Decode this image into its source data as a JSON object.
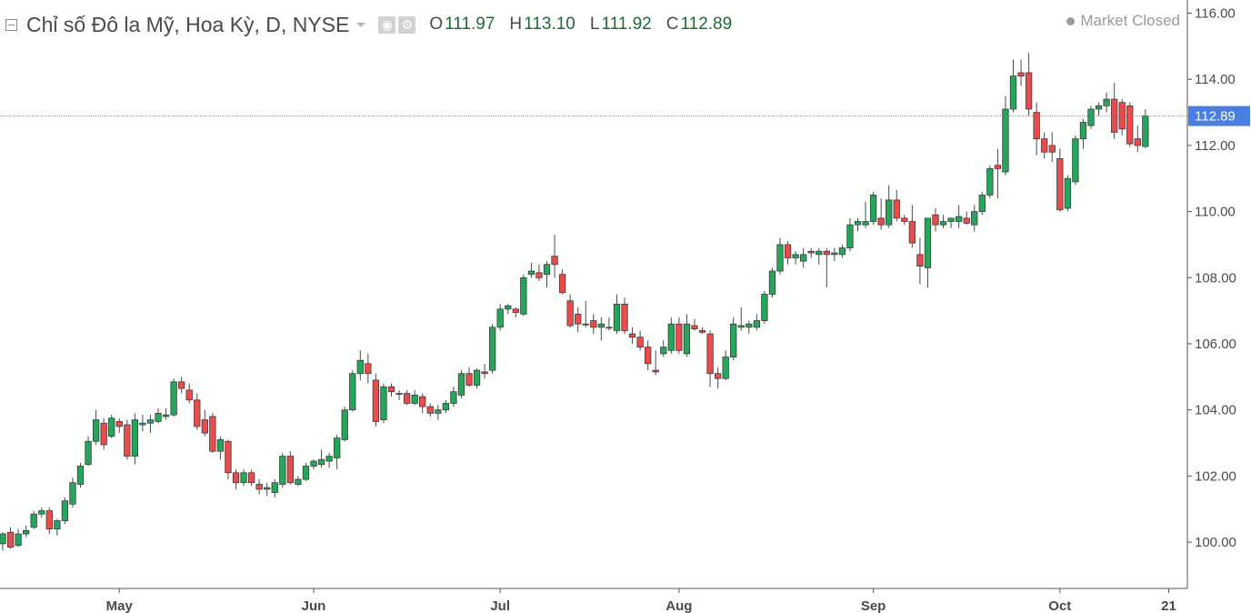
{
  "header": {
    "title": "Chỉ số Đô la Mỹ, Hoa Kỳ, D, NYSE",
    "ohlc": [
      {
        "key": "O",
        "value": "111.97"
      },
      {
        "key": "H",
        "value": "113.10"
      },
      {
        "key": "L",
        "value": "111.92"
      },
      {
        "key": "C",
        "value": "112.89"
      }
    ],
    "market_status": "Market Closed"
  },
  "colors": {
    "up": "#26a65b",
    "down": "#ec4b4b",
    "last_price_label_bg": "#4a7ee0",
    "price_line": "#4a7ee0",
    "axis_text": "#4a4a4a"
  },
  "chart_data": {
    "type": "candlestick",
    "title": "Chỉ số Đô la Mỹ, Hoa Kỳ, D, NYSE",
    "ylim": [
      98.6,
      116.4
    ],
    "y_ticks": [
      "116.00",
      "114.00",
      "112.00",
      "110.00",
      "108.00",
      "106.00",
      "104.00",
      "102.00",
      "100.00"
    ],
    "x_ticks": [
      {
        "label": "May",
        "index": 15
      },
      {
        "label": "Jun",
        "index": 40
      },
      {
        "label": "Jul",
        "index": 64
      },
      {
        "label": "Aug",
        "index": 87
      },
      {
        "label": "Sep",
        "index": 112
      },
      {
        "label": "Oct",
        "index": 136
      },
      {
        "label": "21",
        "index": 150
      }
    ],
    "last_price": "112.89",
    "grid": false,
    "candles": [
      [
        99.95,
        100.3,
        99.75,
        100.25
      ],
      [
        100.3,
        100.45,
        99.8,
        99.85
      ],
      [
        99.9,
        100.4,
        99.85,
        100.25
      ],
      [
        100.25,
        100.5,
        100.15,
        100.35
      ],
      [
        100.45,
        100.95,
        100.4,
        100.85
      ],
      [
        100.85,
        101.05,
        100.75,
        100.95
      ],
      [
        100.95,
        101.05,
        100.25,
        100.4
      ],
      [
        100.4,
        100.7,
        100.2,
        100.65
      ],
      [
        100.65,
        101.35,
        100.55,
        101.25
      ],
      [
        101.15,
        101.95,
        101.05,
        101.8
      ],
      [
        101.75,
        102.4,
        101.65,
        102.3
      ],
      [
        102.35,
        103.2,
        102.3,
        103.05
      ],
      [
        103.05,
        104.0,
        102.95,
        103.7
      ],
      [
        103.6,
        103.75,
        102.8,
        102.95
      ],
      [
        103.2,
        103.85,
        103.15,
        103.75
      ],
      [
        103.65,
        103.75,
        103.3,
        103.5
      ],
      [
        103.55,
        103.7,
        102.5,
        102.6
      ],
      [
        102.6,
        103.9,
        102.35,
        103.7
      ],
      [
        103.55,
        103.85,
        103.35,
        103.6
      ],
      [
        103.6,
        103.85,
        103.3,
        103.7
      ],
      [
        103.65,
        104.05,
        103.6,
        103.9
      ],
      [
        103.8,
        104.05,
        103.7,
        103.85
      ],
      [
        103.85,
        104.95,
        103.8,
        104.85
      ],
      [
        104.85,
        105.0,
        104.5,
        104.65
      ],
      [
        104.6,
        104.8,
        104.2,
        104.3
      ],
      [
        104.3,
        104.5,
        103.4,
        103.5
      ],
      [
        103.7,
        104.0,
        103.2,
        103.3
      ],
      [
        103.8,
        103.9,
        102.7,
        102.75
      ],
      [
        102.75,
        103.2,
        102.5,
        103.1
      ],
      [
        103.05,
        103.1,
        101.9,
        102.1
      ],
      [
        102.1,
        102.2,
        101.6,
        101.8
      ],
      [
        101.8,
        102.2,
        101.7,
        102.1
      ],
      [
        102.1,
        102.2,
        101.7,
        101.8
      ],
      [
        101.75,
        101.9,
        101.45,
        101.6
      ],
      [
        101.6,
        101.8,
        101.4,
        101.65
      ],
      [
        101.5,
        101.9,
        101.35,
        101.8
      ],
      [
        101.75,
        102.7,
        101.65,
        102.6
      ],
      [
        102.6,
        102.75,
        101.75,
        101.8
      ],
      [
        101.75,
        102.0,
        101.7,
        101.9
      ],
      [
        101.9,
        102.4,
        101.85,
        102.3
      ],
      [
        102.3,
        102.5,
        102.2,
        102.45
      ],
      [
        102.35,
        102.8,
        102.25,
        102.5
      ],
      [
        102.45,
        102.7,
        102.25,
        102.6
      ],
      [
        102.55,
        103.25,
        102.2,
        103.15
      ],
      [
        103.1,
        104.1,
        103.05,
        104.0
      ],
      [
        104.0,
        105.2,
        103.95,
        105.1
      ],
      [
        105.1,
        105.8,
        104.9,
        105.5
      ],
      [
        105.4,
        105.7,
        104.8,
        105.1
      ],
      [
        104.9,
        105.1,
        103.5,
        103.65
      ],
      [
        103.7,
        104.8,
        103.6,
        104.7
      ],
      [
        104.7,
        104.8,
        104.4,
        104.55
      ],
      [
        104.5,
        104.6,
        104.3,
        104.5
      ],
      [
        104.5,
        104.6,
        104.15,
        104.2
      ],
      [
        104.2,
        104.6,
        104.15,
        104.45
      ],
      [
        104.4,
        104.5,
        103.9,
        104.1
      ],
      [
        104.1,
        104.2,
        103.8,
        103.9
      ],
      [
        103.9,
        104.15,
        103.7,
        104.0
      ],
      [
        104.0,
        104.3,
        103.9,
        104.2
      ],
      [
        104.2,
        104.7,
        104.1,
        104.55
      ],
      [
        104.45,
        105.2,
        104.35,
        105.1
      ],
      [
        105.1,
        105.3,
        104.7,
        104.75
      ],
      [
        104.75,
        105.25,
        104.65,
        105.2
      ],
      [
        105.15,
        105.4,
        104.95,
        105.1
      ],
      [
        105.2,
        106.6,
        105.1,
        106.5
      ],
      [
        106.5,
        107.2,
        106.4,
        107.05
      ],
      [
        107.05,
        107.2,
        106.9,
        107.15
      ],
      [
        107.05,
        107.1,
        106.8,
        106.95
      ],
      [
        106.9,
        108.1,
        106.85,
        108.0
      ],
      [
        108.1,
        108.45,
        108.0,
        108.2
      ],
      [
        108.15,
        108.4,
        107.9,
        108.0
      ],
      [
        108.1,
        108.5,
        107.7,
        108.4
      ],
      [
        108.65,
        109.3,
        108.0,
        108.4
      ],
      [
        108.1,
        108.25,
        107.5,
        107.55
      ],
      [
        107.3,
        107.5,
        106.5,
        106.55
      ],
      [
        106.9,
        107.1,
        106.35,
        106.6
      ],
      [
        106.6,
        107.3,
        106.5,
        106.6
      ],
      [
        106.7,
        106.9,
        106.3,
        106.5
      ],
      [
        106.5,
        106.8,
        106.1,
        106.6
      ],
      [
        106.5,
        106.8,
        106.4,
        106.5
      ],
      [
        106.4,
        107.5,
        106.3,
        107.2
      ],
      [
        107.2,
        107.4,
        106.3,
        106.4
      ],
      [
        106.3,
        106.5,
        106.0,
        106.2
      ],
      [
        106.2,
        106.4,
        105.8,
        105.9
      ],
      [
        105.9,
        106.1,
        105.2,
        105.4
      ],
      [
        105.2,
        105.8,
        105.05,
        105.15
      ],
      [
        105.7,
        106.1,
        105.6,
        105.9
      ],
      [
        105.8,
        106.8,
        105.7,
        106.6
      ],
      [
        106.6,
        106.8,
        105.7,
        105.8
      ],
      [
        105.7,
        106.9,
        105.6,
        106.6
      ],
      [
        106.55,
        106.75,
        106.4,
        106.45
      ],
      [
        106.4,
        106.5,
        106.3,
        106.35
      ],
      [
        106.3,
        106.4,
        104.7,
        105.1
      ],
      [
        105.1,
        105.3,
        104.65,
        104.95
      ],
      [
        104.95,
        105.8,
        104.9,
        105.6
      ],
      [
        105.6,
        106.8,
        105.5,
        106.6
      ],
      [
        106.5,
        107.1,
        106.4,
        106.55
      ],
      [
        106.5,
        106.7,
        106.3,
        106.6
      ],
      [
        106.5,
        106.9,
        106.4,
        106.7
      ],
      [
        106.7,
        107.6,
        106.6,
        107.5
      ],
      [
        107.5,
        108.3,
        107.4,
        108.2
      ],
      [
        108.2,
        109.2,
        108.1,
        109.0
      ],
      [
        109.0,
        109.1,
        108.4,
        108.6
      ],
      [
        108.6,
        108.8,
        108.4,
        108.7
      ],
      [
        108.5,
        108.9,
        108.3,
        108.7
      ],
      [
        108.8,
        108.9,
        108.6,
        108.75
      ],
      [
        108.7,
        108.9,
        108.4,
        108.8
      ],
      [
        108.8,
        108.9,
        107.7,
        108.7
      ],
      [
        108.7,
        108.9,
        108.5,
        108.75
      ],
      [
        108.7,
        109.0,
        108.6,
        108.9
      ],
      [
        108.9,
        109.8,
        108.8,
        109.6
      ],
      [
        109.6,
        109.8,
        109.4,
        109.7
      ],
      [
        109.6,
        110.3,
        109.5,
        109.7
      ],
      [
        109.7,
        110.6,
        109.6,
        110.5
      ],
      [
        109.8,
        110.4,
        109.45,
        109.6
      ],
      [
        109.6,
        110.8,
        109.5,
        110.35
      ],
      [
        110.35,
        110.65,
        109.7,
        109.8
      ],
      [
        109.8,
        109.9,
        109.6,
        109.7
      ],
      [
        109.7,
        110.2,
        108.9,
        109.05
      ],
      [
        108.7,
        109.2,
        107.8,
        108.35
      ],
      [
        108.3,
        109.8,
        107.7,
        109.8
      ],
      [
        109.9,
        110.1,
        109.4,
        109.6
      ],
      [
        109.6,
        109.9,
        109.5,
        109.7
      ],
      [
        109.7,
        109.8,
        109.5,
        109.8
      ],
      [
        109.7,
        110.2,
        109.5,
        109.85
      ],
      [
        109.8,
        110.0,
        109.6,
        109.65
      ],
      [
        109.6,
        110.2,
        109.4,
        110.0
      ],
      [
        110.0,
        110.6,
        109.9,
        110.5
      ],
      [
        110.5,
        111.4,
        110.4,
        111.3
      ],
      [
        111.4,
        111.9,
        110.4,
        111.3
      ],
      [
        111.2,
        113.5,
        111.1,
        113.1
      ],
      [
        113.1,
        114.6,
        113.0,
        114.1
      ],
      [
        114.2,
        114.6,
        113.8,
        114.1
      ],
      [
        114.2,
        114.8,
        112.9,
        113.1
      ],
      [
        113.0,
        113.3,
        111.7,
        112.2
      ],
      [
        112.2,
        112.4,
        111.6,
        111.8
      ],
      [
        112.0,
        112.4,
        111.5,
        111.8
      ],
      [
        111.6,
        111.9,
        110.0,
        110.05
      ],
      [
        110.1,
        111.1,
        110.0,
        111.0
      ],
      [
        110.9,
        112.3,
        110.8,
        112.2
      ],
      [
        112.2,
        112.8,
        111.9,
        112.7
      ],
      [
        112.6,
        113.2,
        112.5,
        113.1
      ],
      [
        113.1,
        113.3,
        112.9,
        113.2
      ],
      [
        113.2,
        113.6,
        113.0,
        113.4
      ],
      [
        113.4,
        113.9,
        112.2,
        112.4
      ],
      [
        113.3,
        113.4,
        112.3,
        112.5
      ],
      [
        113.2,
        113.3,
        111.95,
        112.05
      ],
      [
        112.2,
        112.6,
        111.8,
        112.0
      ],
      [
        111.97,
        113.1,
        111.92,
        112.89
      ]
    ]
  }
}
